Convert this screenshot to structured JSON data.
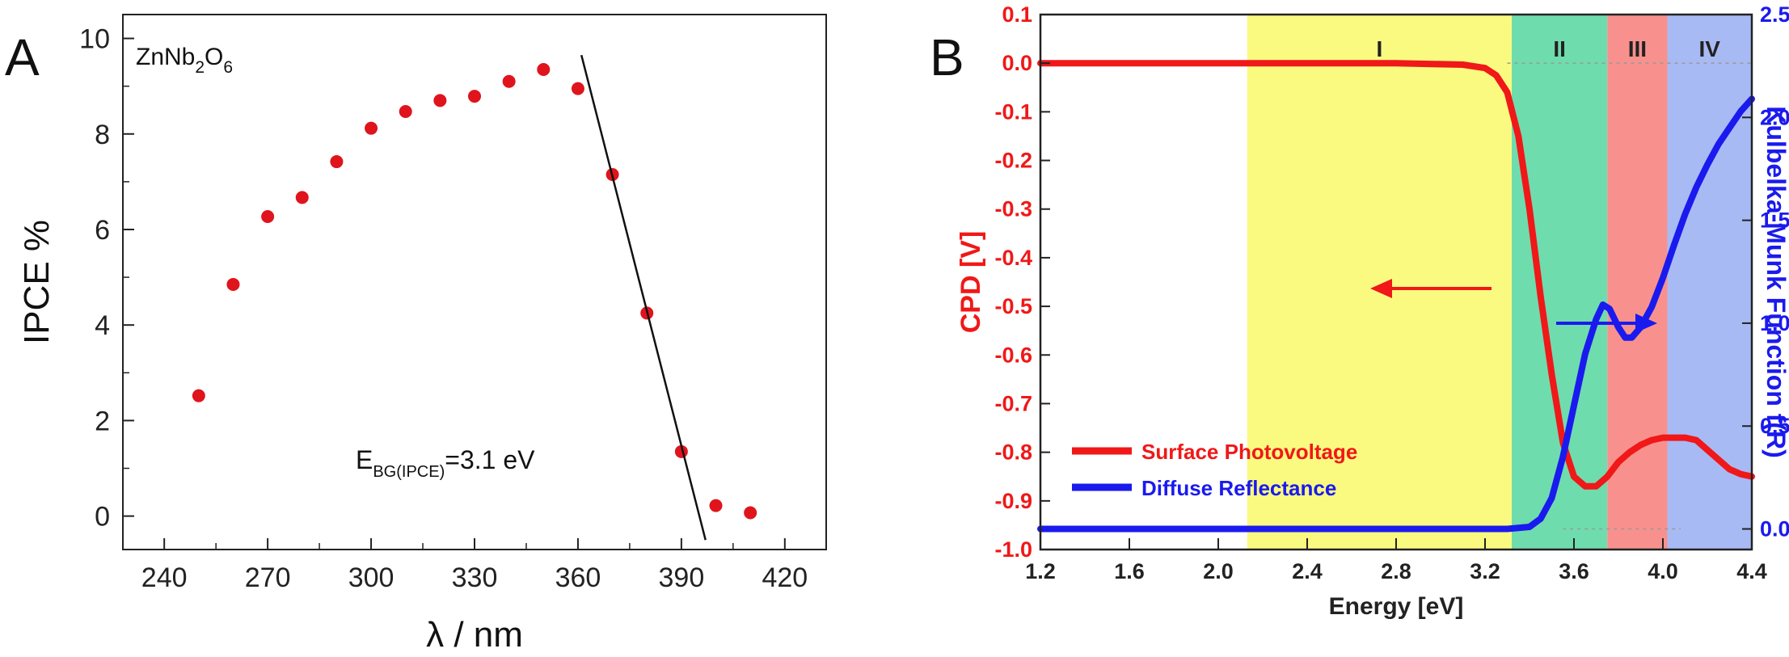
{
  "panel_a_label": "A",
  "panel_b_label": "B",
  "chart_data": [
    {
      "type": "scatter",
      "xlabel": "λ / nm",
      "ylabel": "IPCE %",
      "xlim": [
        228,
        432
      ],
      "ylim": [
        -0.7,
        10.5
      ],
      "xticks": [
        240,
        270,
        300,
        330,
        360,
        390,
        420
      ],
      "yticks": [
        0,
        2,
        4,
        6,
        8,
        10
      ],
      "material": {
        "base": "ZnNb",
        "sub1": "2",
        "mid": "O",
        "sub2": "6"
      },
      "annotation": {
        "main": "E",
        "sub": "BG(IPCE)",
        "rest": "=3.1 eV"
      },
      "point_color": "#e0141c",
      "series": [
        {
          "x": [
            250,
            260,
            270,
            280,
            290,
            300,
            310,
            320,
            330,
            340,
            350,
            360,
            370,
            380,
            390,
            400,
            410
          ],
          "values": [
            2.52,
            4.85,
            6.27,
            6.67,
            7.42,
            8.12,
            8.47,
            8.7,
            8.79,
            9.1,
            9.35,
            8.95,
            7.15,
            4.25,
            1.35,
            0.22,
            0.07
          ]
        }
      ],
      "fit_line": {
        "x": [
          361,
          397
        ],
        "y": [
          9.65,
          -0.5
        ]
      }
    },
    {
      "type": "line",
      "xlabel": "Energy [eV]",
      "ylabel_left": "CPD [V]",
      "ylabel_right": "Kulbelka-Munk Function f(R)",
      "xlim": [
        1.2,
        4.4
      ],
      "ylim_left": [
        -1.0,
        0.1
      ],
      "ylim_right": [
        -0.1,
        2.5
      ],
      "xticks": [
        "1.2",
        "1.6",
        "2.0",
        "2.4",
        "2.8",
        "3.2",
        "3.6",
        "4.0",
        "4.4"
      ],
      "yticks_left": [
        "0.1",
        "0.0",
        "-0.1",
        "-0.2",
        "-0.3",
        "-0.4",
        "-0.5",
        "-0.6",
        "-0.7",
        "-0.8",
        "-0.9",
        "-1.0"
      ],
      "yticks_right": [
        "0.0",
        "0.5",
        "1.0",
        "1.5",
        "2.0",
        "2.5"
      ],
      "regions": [
        {
          "label": "I",
          "from": 2.13,
          "to": 3.32,
          "color": "#fbfa80"
        },
        {
          "label": "II",
          "from": 3.32,
          "to": 3.75,
          "color": "#6fdcae"
        },
        {
          "label": "III",
          "from": 3.75,
          "to": 4.02,
          "color": "#f8918e"
        },
        {
          "label": "IV",
          "from": 4.02,
          "to": 4.4,
          "color": "#a8baf4"
        }
      ],
      "legend_position": "bottom-left",
      "series": [
        {
          "name": "Surface Photovoltage",
          "axis": "left",
          "color": "#f01818",
          "x": [
            1.2,
            2.0,
            2.8,
            3.1,
            3.2,
            3.25,
            3.3,
            3.35,
            3.4,
            3.45,
            3.5,
            3.55,
            3.6,
            3.65,
            3.7,
            3.75,
            3.8,
            3.85,
            3.9,
            3.95,
            4.0,
            4.05,
            4.1,
            4.15,
            4.2,
            4.25,
            4.3,
            4.35,
            4.4
          ],
          "values": [
            0.0,
            0.0,
            0.0,
            -0.003,
            -0.01,
            -0.025,
            -0.06,
            -0.15,
            -0.3,
            -0.48,
            -0.64,
            -0.78,
            -0.85,
            -0.87,
            -0.87,
            -0.85,
            -0.82,
            -0.8,
            -0.785,
            -0.775,
            -0.77,
            -0.77,
            -0.77,
            -0.775,
            -0.795,
            -0.815,
            -0.835,
            -0.845,
            -0.85
          ]
        },
        {
          "name": "Diffuse Reflectance",
          "axis": "right",
          "color": "#1a1aee",
          "x": [
            1.2,
            3.0,
            3.3,
            3.4,
            3.45,
            3.5,
            3.55,
            3.6,
            3.65,
            3.7,
            3.73,
            3.76,
            3.8,
            3.83,
            3.86,
            3.9,
            3.95,
            4.0,
            4.05,
            4.1,
            4.15,
            4.2,
            4.25,
            4.3,
            4.35,
            4.4
          ],
          "values": [
            0.0,
            0.0,
            0.0,
            0.01,
            0.05,
            0.15,
            0.35,
            0.6,
            0.85,
            1.02,
            1.09,
            1.07,
            0.98,
            0.93,
            0.93,
            0.98,
            1.08,
            1.22,
            1.38,
            1.53,
            1.66,
            1.77,
            1.87,
            1.95,
            2.03,
            2.09
          ]
        }
      ]
    }
  ]
}
